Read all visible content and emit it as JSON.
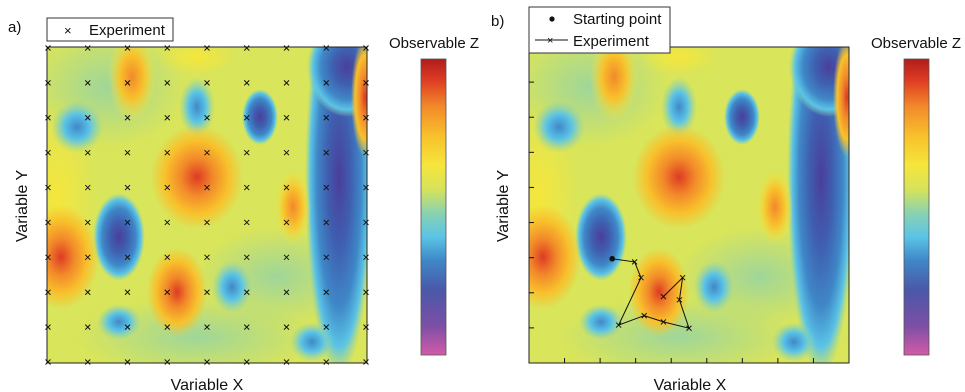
{
  "chart_data": [
    {
      "type": "heatmap",
      "panel_label": "a)",
      "xlabel": "Variable X",
      "ylabel": "Variable Y",
      "colorbar_label": "Observable Z",
      "legend": [
        {
          "marker": "x",
          "label": "Experiment"
        }
      ],
      "legend_placement": "top-left",
      "grid": false,
      "colormap": [
        "#d45aa8",
        "#7b4fa6",
        "#4a58a8",
        "#3f88c8",
        "#5bc4e6",
        "#8ad2b0",
        "#d6e35a",
        "#f5e63c",
        "#f8c12c",
        "#f2892a",
        "#dd3b23",
        "#b01c1c"
      ],
      "experiments": {
        "description": "regular grid of experiment points, 9 columns x 10 rows",
        "columns": 9,
        "rows": 10
      }
    },
    {
      "type": "heatmap",
      "panel_label": "b)",
      "xlabel": "Variable X",
      "ylabel": "Variable Y",
      "colorbar_label": "Observable Z",
      "legend": [
        {
          "marker": "dot",
          "label": "Starting point"
        },
        {
          "marker": "line-x",
          "label": "Experiment"
        }
      ],
      "legend_placement": "top-left",
      "grid": false,
      "colormap": [
        "#d45aa8",
        "#7b4fa6",
        "#4a58a8",
        "#3f88c8",
        "#5bc4e6",
        "#8ad2b0",
        "#d6e35a",
        "#f5e63c",
        "#f8c12c",
        "#f2892a",
        "#dd3b23",
        "#b01c1c"
      ],
      "path": {
        "start": {
          "x": 0.26,
          "y": 0.33
        },
        "points": [
          {
            "x": 0.33,
            "y": 0.32
          },
          {
            "x": 0.35,
            "y": 0.27
          },
          {
            "x": 0.28,
            "y": 0.12
          },
          {
            "x": 0.36,
            "y": 0.15
          },
          {
            "x": 0.42,
            "y": 0.13
          },
          {
            "x": 0.5,
            "y": 0.11
          },
          {
            "x": 0.47,
            "y": 0.2
          },
          {
            "x": 0.48,
            "y": 0.27
          },
          {
            "x": 0.42,
            "y": 0.21
          }
        ]
      }
    }
  ]
}
